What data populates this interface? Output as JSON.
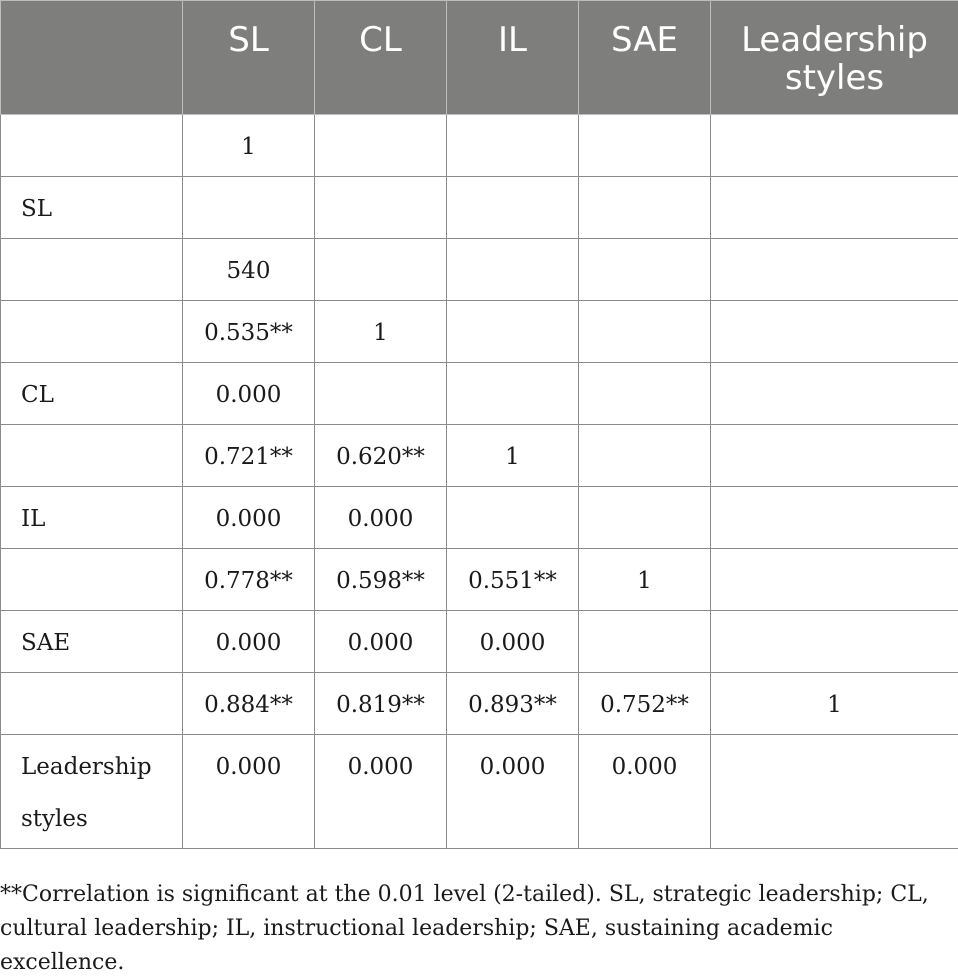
{
  "table": {
    "columns": [
      "",
      "SL",
      "CL",
      "IL",
      "SAE",
      "Leadership styles"
    ],
    "rows": [
      [
        "",
        "1",
        "",
        "",
        "",
        ""
      ],
      [
        "SL",
        "",
        "",
        "",
        "",
        ""
      ],
      [
        "",
        "540",
        "",
        "",
        "",
        ""
      ],
      [
        "",
        "0.535**",
        "1",
        "",
        "",
        ""
      ],
      [
        "CL",
        "0.000",
        "",
        "",
        "",
        ""
      ],
      [
        "",
        "0.721**",
        "0.620**",
        "1",
        "",
        ""
      ],
      [
        "IL",
        "0.000",
        "0.000",
        "",
        "",
        ""
      ],
      [
        "",
        "0.778**",
        "0.598**",
        "0.551**",
        "1",
        ""
      ],
      [
        "SAE",
        "0.000",
        "0.000",
        "0.000",
        "",
        ""
      ],
      [
        "",
        "0.884**",
        "0.819**",
        "0.893**",
        "0.752**",
        "1"
      ],
      [
        "Leadership styles",
        "0.000",
        "0.000",
        "0.000",
        "0.000",
        ""
      ]
    ]
  },
  "footnote": "**Correlation is significant at the 0.01 level (2-tailed). SL, strategic leadership; CL, cultural leadership; IL, instructional leadership; SAE, sustaining academic excellence."
}
